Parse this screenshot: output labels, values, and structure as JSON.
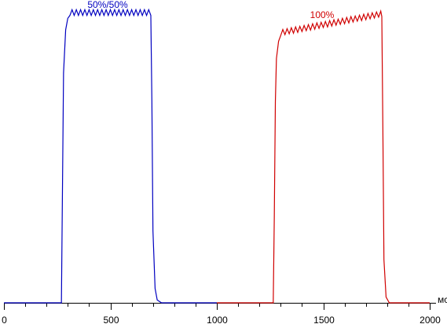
{
  "chart_data": {
    "type": "line",
    "x_unit": "мс",
    "xlim": [
      0,
      2000
    ],
    "xticks": [
      0,
      500,
      1000,
      1500,
      2000
    ],
    "xminorticks": [
      100,
      200,
      300,
      400,
      600,
      700,
      800,
      900,
      1100,
      1200,
      1300,
      1400,
      1600,
      1700,
      1800,
      1900
    ],
    "ylim": [
      0,
      104
    ],
    "series": [
      {
        "name": "50%/50%",
        "color": "#0000c0",
        "x": [
          0,
          270,
          275,
          280,
          290,
          300,
          310,
          320,
          330,
          340,
          350,
          360,
          370,
          380,
          390,
          400,
          410,
          420,
          430,
          440,
          450,
          460,
          470,
          480,
          490,
          500,
          510,
          520,
          530,
          540,
          550,
          560,
          570,
          580,
          590,
          600,
          610,
          620,
          630,
          640,
          650,
          660,
          670,
          680,
          690,
          695,
          700,
          710,
          720,
          740,
          1000
        ],
        "values": [
          0,
          0,
          40,
          80,
          95,
          99,
          100,
          102,
          100,
          102,
          100,
          102,
          100,
          102,
          100,
          102,
          100,
          102,
          100,
          102,
          100,
          102,
          100,
          102,
          100,
          102,
          100,
          102,
          100,
          102,
          100,
          102,
          100,
          102,
          100,
          102,
          100,
          102,
          100,
          102,
          100,
          102,
          100,
          102,
          100,
          70,
          25,
          5,
          1,
          0,
          0
        ]
      },
      {
        "name": "100%",
        "color": "#d00000",
        "x": [
          1000,
          1265,
          1270,
          1275,
          1280,
          1290,
          1300,
          1310,
          1320,
          1330,
          1340,
          1350,
          1360,
          1370,
          1380,
          1390,
          1400,
          1410,
          1420,
          1430,
          1440,
          1450,
          1460,
          1470,
          1480,
          1490,
          1500,
          1510,
          1520,
          1530,
          1540,
          1550,
          1560,
          1570,
          1580,
          1590,
          1600,
          1610,
          1620,
          1630,
          1640,
          1650,
          1660,
          1670,
          1680,
          1690,
          1700,
          1710,
          1720,
          1730,
          1740,
          1750,
          1760,
          1770,
          1775,
          1780,
          1785,
          1795,
          1810,
          2000
        ],
        "values": [
          0,
          0,
          30,
          70,
          85,
          91,
          93.0,
          95.1,
          93.3,
          95.4,
          93.6,
          95.7,
          93.8,
          96.0,
          94.1,
          96.2,
          94.4,
          96.5,
          94.7,
          96.8,
          94.9,
          97.1,
          95.2,
          97.4,
          95.5,
          97.6,
          95.8,
          97.9,
          96.0,
          98.2,
          96.3,
          98.5,
          96.6,
          98.7,
          96.9,
          99.0,
          97.1,
          99.3,
          97.4,
          99.6,
          97.7,
          99.8,
          98.0,
          100.1,
          98.2,
          100.4,
          98.5,
          100.7,
          98.8,
          100.9,
          99.1,
          101.2,
          99.4,
          101.5,
          99.6,
          60,
          15,
          2,
          0,
          0
        ]
      }
    ]
  }
}
